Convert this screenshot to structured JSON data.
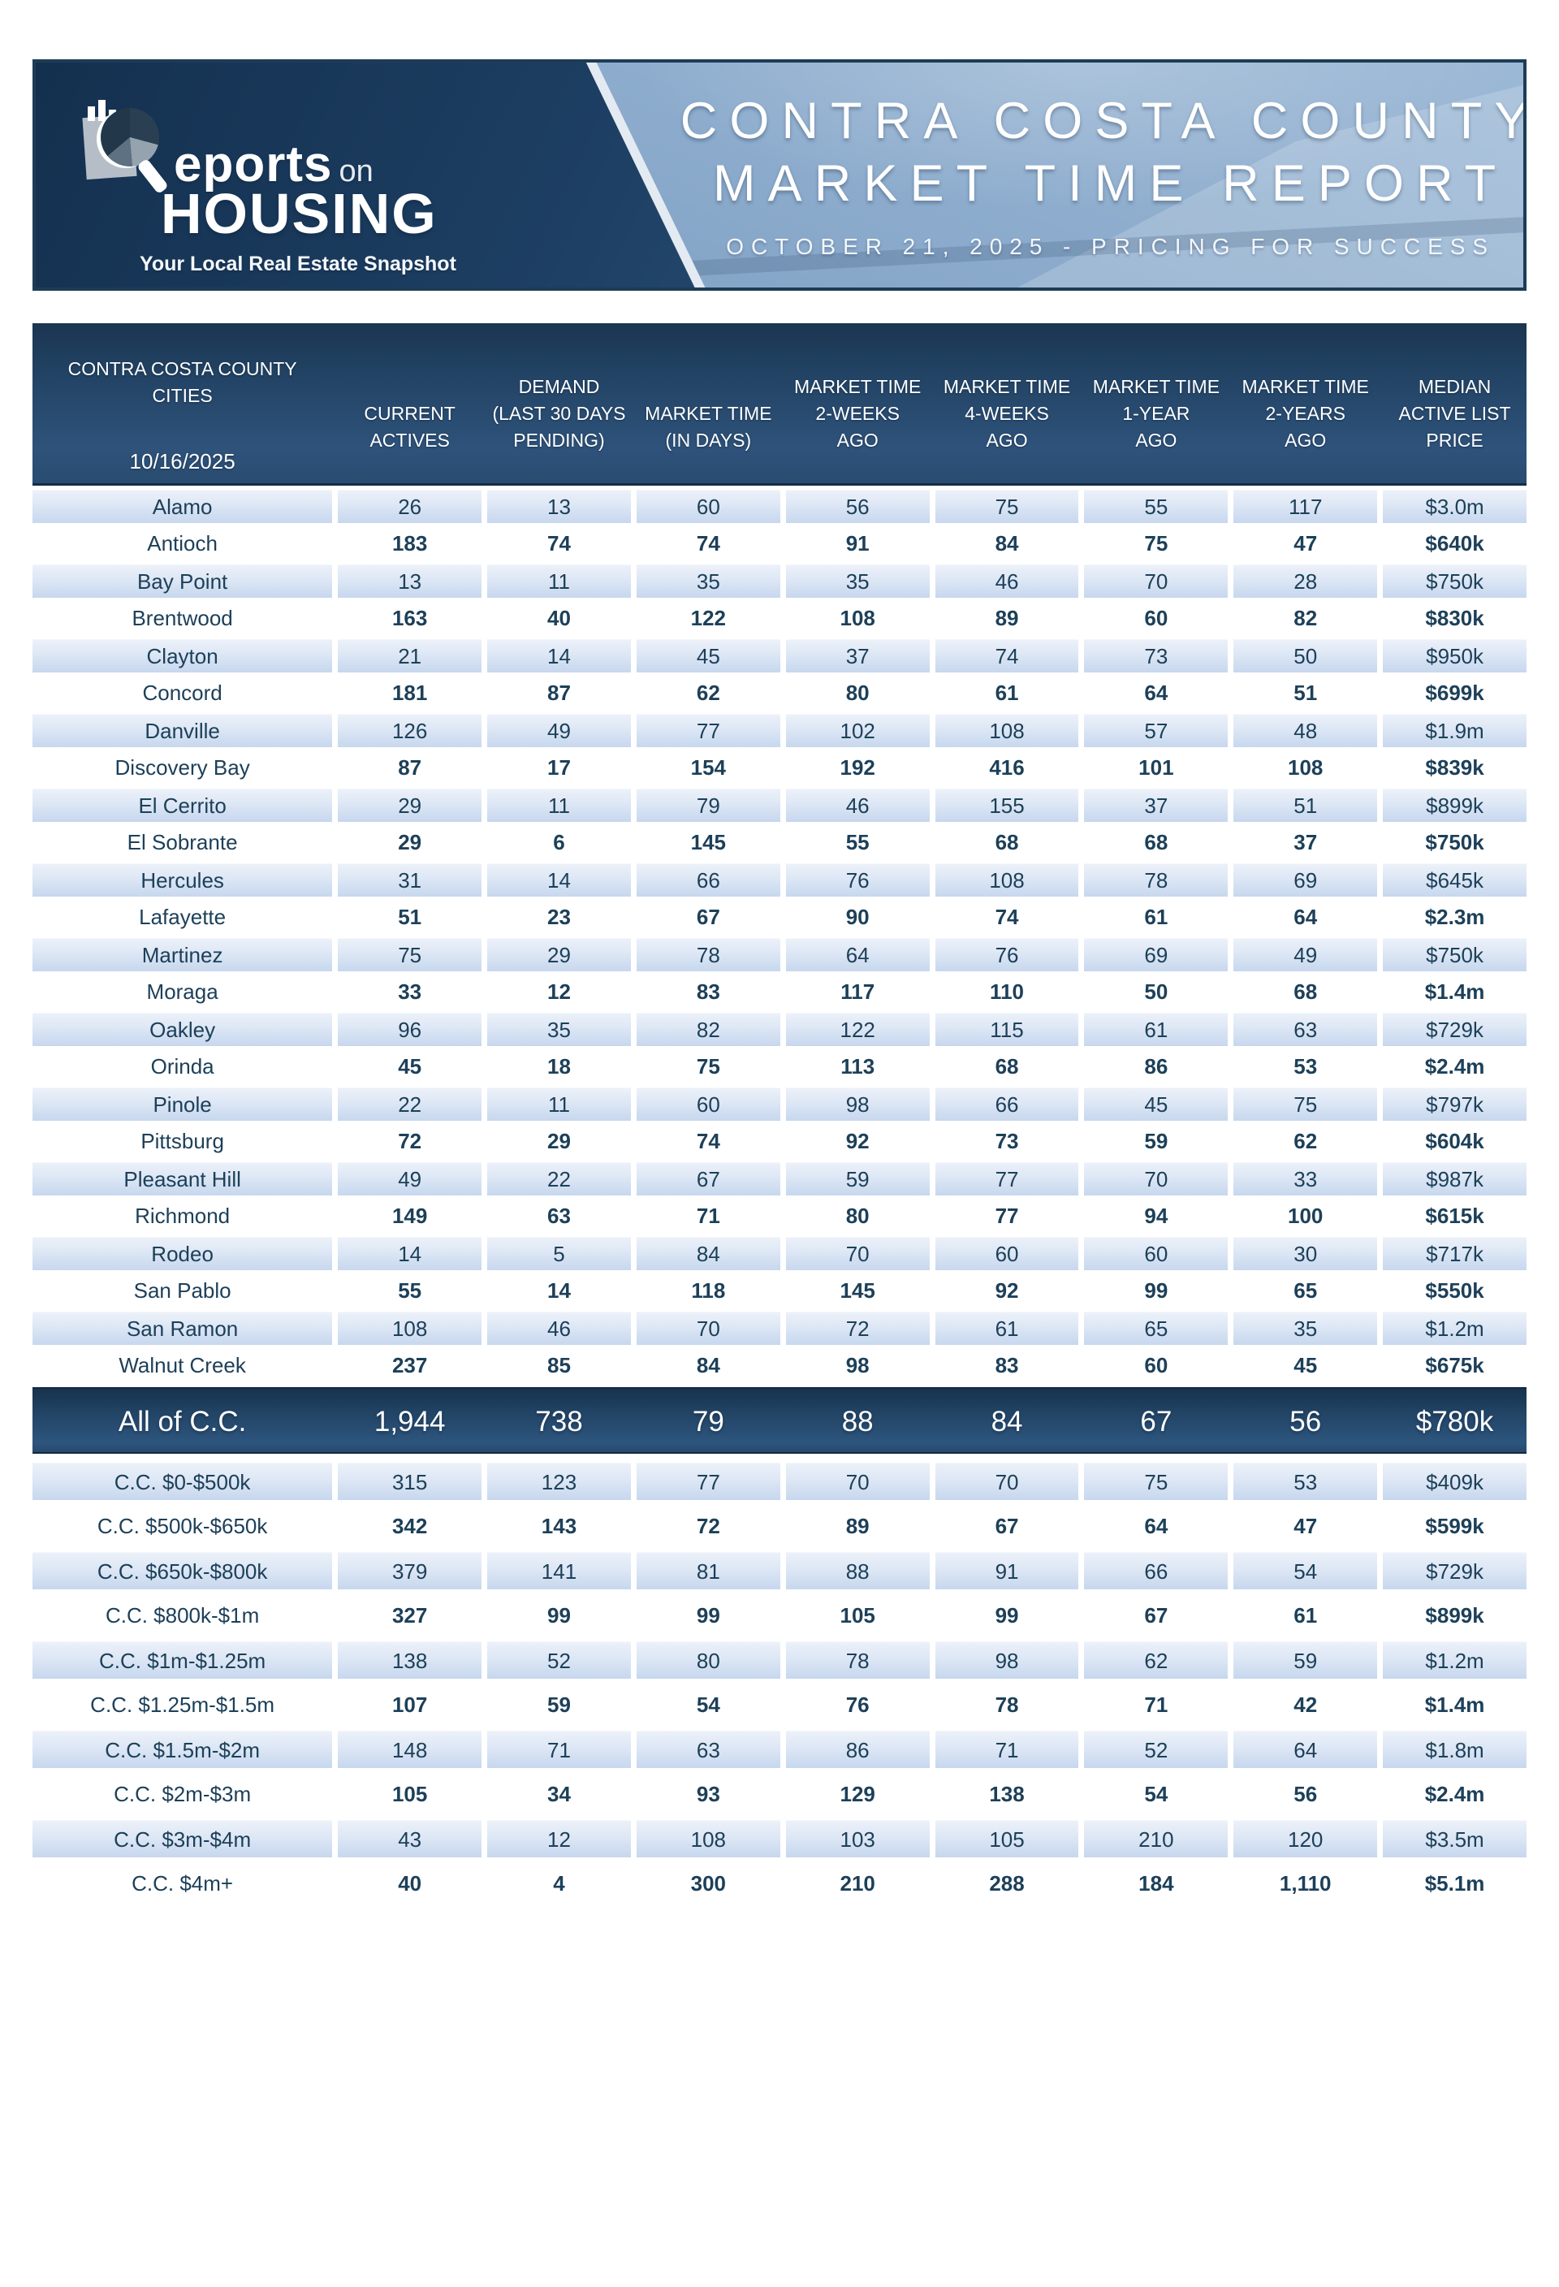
{
  "banner": {
    "logo": {
      "brand_r": "",
      "brand_rest": "eports",
      "brand_on": "on",
      "brand_housing": "HOUSING",
      "tagline": "Your Local Real Estate Snapshot"
    },
    "title_line1": "CONTRA COSTA COUNTY",
    "title_line2": "MARKET TIME REPORT",
    "subtitle": "OCTOBER 21, 2025 - PRICING FOR SUCCESS"
  },
  "table": {
    "header": {
      "city_line1": "CONTRA COSTA COUNTY",
      "city_line2": "CITIES",
      "date": "10/16/2025",
      "columns": [
        {
          "lines": [
            "CURRENT",
            "ACTIVES"
          ]
        },
        {
          "lines": [
            "DEMAND",
            "(LAST 30 DAYS",
            "PENDING)"
          ]
        },
        {
          "lines": [
            "MARKET TIME",
            "(IN DAYS)"
          ]
        },
        {
          "lines": [
            "MARKET TIME",
            "2-WEEKS",
            "AGO"
          ]
        },
        {
          "lines": [
            "MARKET TIME",
            "4-WEEKS",
            "AGO"
          ]
        },
        {
          "lines": [
            "MARKET TIME",
            "1-YEAR",
            "AGO"
          ]
        },
        {
          "lines": [
            "MARKET TIME",
            "2-YEARS",
            "AGO"
          ]
        },
        {
          "lines": [
            "MEDIAN",
            "ACTIVE LIST",
            "PRICE"
          ]
        }
      ]
    },
    "city_rows": [
      {
        "name": "Alamo",
        "values": [
          "26",
          "13",
          "60",
          "56",
          "75",
          "55",
          "117",
          "$3.0m"
        ]
      },
      {
        "name": "Antioch",
        "values": [
          "183",
          "74",
          "74",
          "91",
          "84",
          "75",
          "47",
          "$640k"
        ]
      },
      {
        "name": "Bay Point",
        "values": [
          "13",
          "11",
          "35",
          "35",
          "46",
          "70",
          "28",
          "$750k"
        ]
      },
      {
        "name": "Brentwood",
        "values": [
          "163",
          "40",
          "122",
          "108",
          "89",
          "60",
          "82",
          "$830k"
        ]
      },
      {
        "name": "Clayton",
        "values": [
          "21",
          "14",
          "45",
          "37",
          "74",
          "73",
          "50",
          "$950k"
        ]
      },
      {
        "name": "Concord",
        "values": [
          "181",
          "87",
          "62",
          "80",
          "61",
          "64",
          "51",
          "$699k"
        ]
      },
      {
        "name": "Danville",
        "values": [
          "126",
          "49",
          "77",
          "102",
          "108",
          "57",
          "48",
          "$1.9m"
        ]
      },
      {
        "name": "Discovery Bay",
        "values": [
          "87",
          "17",
          "154",
          "192",
          "416",
          "101",
          "108",
          "$839k"
        ]
      },
      {
        "name": "El Cerrito",
        "values": [
          "29",
          "11",
          "79",
          "46",
          "155",
          "37",
          "51",
          "$899k"
        ]
      },
      {
        "name": "El Sobrante",
        "values": [
          "29",
          "6",
          "145",
          "55",
          "68",
          "68",
          "37",
          "$750k"
        ]
      },
      {
        "name": "Hercules",
        "values": [
          "31",
          "14",
          "66",
          "76",
          "108",
          "78",
          "69",
          "$645k"
        ]
      },
      {
        "name": "Lafayette",
        "values": [
          "51",
          "23",
          "67",
          "90",
          "74",
          "61",
          "64",
          "$2.3m"
        ]
      },
      {
        "name": "Martinez",
        "values": [
          "75",
          "29",
          "78",
          "64",
          "76",
          "69",
          "49",
          "$750k"
        ]
      },
      {
        "name": "Moraga",
        "values": [
          "33",
          "12",
          "83",
          "117",
          "110",
          "50",
          "68",
          "$1.4m"
        ]
      },
      {
        "name": "Oakley",
        "values": [
          "96",
          "35",
          "82",
          "122",
          "115",
          "61",
          "63",
          "$729k"
        ]
      },
      {
        "name": "Orinda",
        "values": [
          "45",
          "18",
          "75",
          "113",
          "68",
          "86",
          "53",
          "$2.4m"
        ]
      },
      {
        "name": "Pinole",
        "values": [
          "22",
          "11",
          "60",
          "98",
          "66",
          "45",
          "75",
          "$797k"
        ]
      },
      {
        "name": "Pittsburg",
        "values": [
          "72",
          "29",
          "74",
          "92",
          "73",
          "59",
          "62",
          "$604k"
        ]
      },
      {
        "name": "Pleasant Hill",
        "values": [
          "49",
          "22",
          "67",
          "59",
          "77",
          "70",
          "33",
          "$987k"
        ]
      },
      {
        "name": "Richmond",
        "values": [
          "149",
          "63",
          "71",
          "80",
          "77",
          "94",
          "100",
          "$615k"
        ]
      },
      {
        "name": "Rodeo",
        "values": [
          "14",
          "5",
          "84",
          "70",
          "60",
          "60",
          "30",
          "$717k"
        ]
      },
      {
        "name": "San Pablo",
        "values": [
          "55",
          "14",
          "118",
          "145",
          "92",
          "99",
          "65",
          "$550k"
        ]
      },
      {
        "name": "San Ramon",
        "values": [
          "108",
          "46",
          "70",
          "72",
          "61",
          "65",
          "35",
          "$1.2m"
        ]
      },
      {
        "name": "Walnut Creek",
        "values": [
          "237",
          "85",
          "84",
          "98",
          "83",
          "60",
          "45",
          "$675k"
        ]
      }
    ],
    "total_row": {
      "name": "All of C.C.",
      "values": [
        "1,944",
        "738",
        "79",
        "88",
        "84",
        "67",
        "56",
        "$780k"
      ]
    },
    "price_rows": [
      {
        "name": "C.C. $0-$500k",
        "values": [
          "315",
          "123",
          "77",
          "70",
          "70",
          "75",
          "53",
          "$409k"
        ]
      },
      {
        "name": "C.C. $500k-$650k",
        "values": [
          "342",
          "143",
          "72",
          "89",
          "67",
          "64",
          "47",
          "$599k"
        ]
      },
      {
        "name": "C.C. $650k-$800k",
        "values": [
          "379",
          "141",
          "81",
          "88",
          "91",
          "66",
          "54",
          "$729k"
        ]
      },
      {
        "name": "C.C. $800k-$1m",
        "values": [
          "327",
          "99",
          "99",
          "105",
          "99",
          "67",
          "61",
          "$899k"
        ]
      },
      {
        "name": "C.C. $1m-$1.25m",
        "values": [
          "138",
          "52",
          "80",
          "78",
          "98",
          "62",
          "59",
          "$1.2m"
        ]
      },
      {
        "name": "C.C. $1.25m-$1.5m",
        "values": [
          "107",
          "59",
          "54",
          "76",
          "78",
          "71",
          "42",
          "$1.4m"
        ]
      },
      {
        "name": "C.C. $1.5m-$2m",
        "values": [
          "148",
          "71",
          "63",
          "86",
          "71",
          "52",
          "64",
          "$1.8m"
        ]
      },
      {
        "name": "C.C. $2m-$3m",
        "values": [
          "105",
          "34",
          "93",
          "129",
          "138",
          "54",
          "56",
          "$2.4m"
        ]
      },
      {
        "name": "C.C. $3m-$4m",
        "values": [
          "43",
          "12",
          "108",
          "103",
          "105",
          "210",
          "120",
          "$3.5m"
        ]
      },
      {
        "name": "C.C. $4m+",
        "values": [
          "40",
          "4",
          "300",
          "210",
          "288",
          "184",
          "1,110",
          "$5.1m"
        ]
      }
    ]
  },
  "colors": {
    "header_navy": "#1b3551",
    "row_shade_blue": "#c7d7ee",
    "text_navy": "#1d4059",
    "banner_right_blue": "#86a9cd",
    "banner_left_navy": "#14304f"
  }
}
